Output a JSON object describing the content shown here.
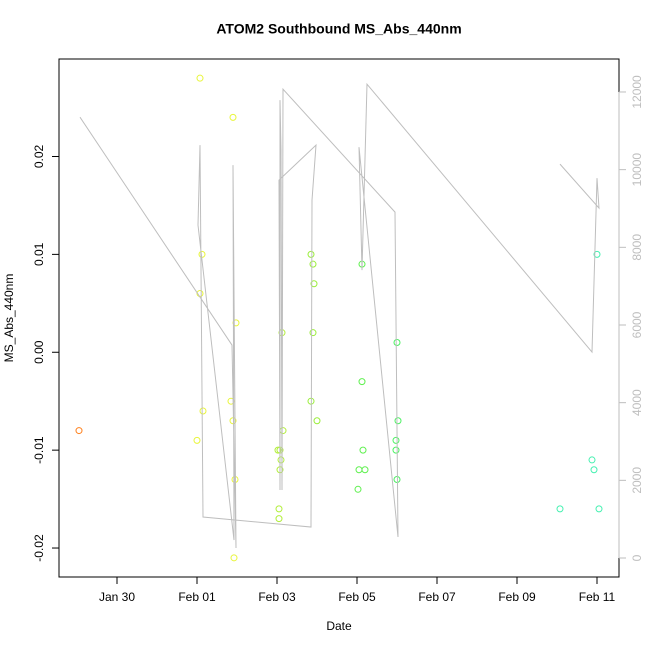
{
  "chart_data": {
    "type": "scatter",
    "title": "ATOM2 Southbound MS_Abs_440nm",
    "x_label": "Date",
    "y_label": "MS_Abs_440nm",
    "xlim": [
      28.55,
      42.55
    ],
    "xticks": [
      {
        "value": 30,
        "label": "Jan 30"
      },
      {
        "value": 32,
        "label": "Feb 01"
      },
      {
        "value": 34,
        "label": "Feb 03"
      },
      {
        "value": 36,
        "label": "Feb 05"
      },
      {
        "value": 38,
        "label": "Feb 07"
      },
      {
        "value": 40,
        "label": "Feb 09"
      },
      {
        "value": 42,
        "label": "Feb 11"
      }
    ],
    "ylim": [
      -0.02296,
      0.02996
    ],
    "yticks": [
      -0.02,
      -0.01,
      {
        "value": 0,
        "label": "0.00"
      },
      0.01,
      0.02
    ],
    "y2lim": [
      -489,
      12849
    ],
    "y2ticks": [
      0,
      2000,
      4000,
      6000,
      8000,
      10000,
      12000
    ],
    "y2_color": "#bebebe",
    "series": [
      {
        "x": [
          29.05,
          32.075,
          32.9,
          32.125,
          32.075,
          32.975,
          32.85,
          32.15,
          32.9,
          32.0,
          32.95,
          32.925,
          34.125,
          34.025,
          34.075,
          34.15,
          34.1,
          34.075,
          34.05,
          34.05,
          34.85,
          34.9,
          34.925,
          34.9,
          34.85,
          35.0,
          36.125,
          36.125,
          36.15,
          36.05,
          36.2,
          36.025,
          37.0,
          37.025,
          36.975,
          36.975,
          37.0,
          41.075,
          41.875,
          41.925,
          42.0,
          42.05
        ],
        "values": [
          -0.008,
          0.028,
          0.024,
          0.01,
          0.006,
          0.003,
          -0.005,
          -0.006,
          -0.007,
          -0.009,
          -0.013,
          -0.021,
          0.002,
          -0.01,
          -0.01,
          -0.008,
          -0.011,
          -0.012,
          -0.016,
          -0.017,
          0.01,
          0.009,
          0.007,
          0.002,
          -0.005,
          -0.007,
          0.009,
          -0.003,
          -0.01,
          -0.012,
          -0.012,
          -0.014,
          0.001,
          -0.007,
          -0.009,
          -0.01,
          -0.013,
          -0.016,
          -0.011,
          -0.012,
          0.01,
          -0.016
        ],
        "colors": [
          "#ff7f1a",
          "#e8f53a",
          "#e8f53a",
          "#e8f53a",
          "#e8f53a",
          "#e8f53a",
          "#e8f53a",
          "#e8f53a",
          "#e8f53a",
          "#e8f53a",
          "#e8f53a",
          "#e8f53a",
          "#b2ee3a",
          "#b2ee3a",
          "#b2ee3a",
          "#b2ee3a",
          "#b2ee3a",
          "#b2ee3a",
          "#b2ee3a",
          "#b2ee3a",
          "#9aee3a",
          "#9aee3a",
          "#9aee3a",
          "#9aee3a",
          "#9aee3a",
          "#9aee3a",
          "#5ef04e",
          "#5ef04e",
          "#5ef04e",
          "#5ef04e",
          "#5ef04e",
          "#5ef04e",
          "#4cf062",
          "#4cf062",
          "#4cf062",
          "#4cf062",
          "#4cf062",
          "#44f0b0",
          "#44f0b0",
          "#44f0b0",
          "#44f0b0",
          "#44f0b0"
        ]
      },
      {
        "axis": "y2",
        "color": "#bebebe",
        "x": [
          29.075,
          32.875,
          32.975,
          32.9,
          32.925,
          32.025,
          32.075,
          32.15,
          34.85,
          34.875,
          34.975,
          34.05,
          34.075,
          34.075,
          34.1,
          34.125,
          34.15,
          36.95,
          37.025,
          36.05,
          36.125,
          36.25,
          41.875,
          42.0,
          42.05,
          41.075
        ],
        "values": [
          11351,
          5483,
          257,
          10116,
          463,
          8571,
          10631,
          1055,
          798,
          9215,
          10631,
          9730,
          1750,
          11789,
          10502,
          1750,
          12072,
          8906,
          541,
          10579,
          7413,
          12201,
          5302,
          9781,
          9009,
          10142
        ]
      }
    ]
  }
}
